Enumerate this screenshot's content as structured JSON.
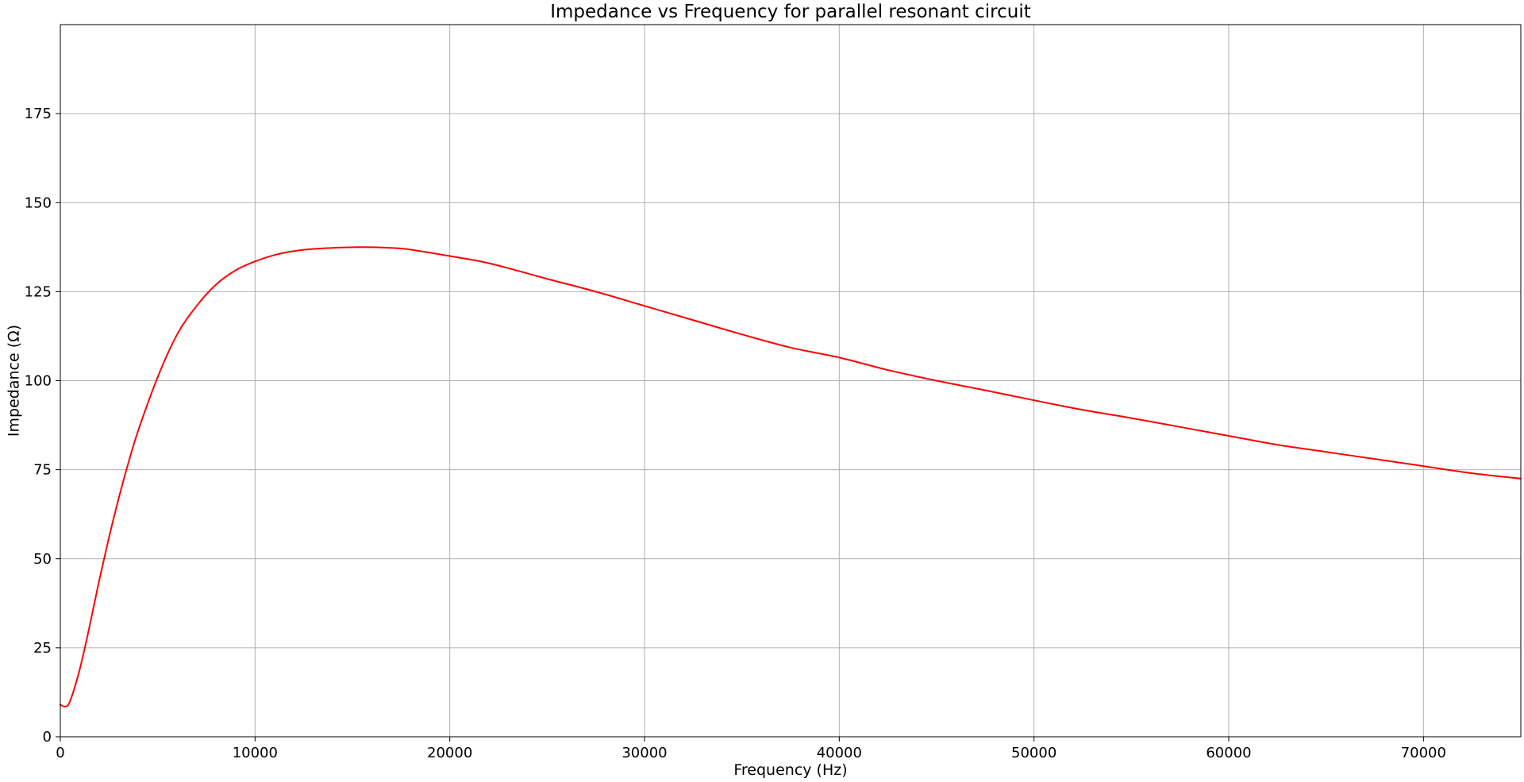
{
  "chart_data": {
    "type": "line",
    "title": "Impedance vs Frequency for parallel resonant circuit",
    "xlabel": "Frequency (Hz)",
    "ylabel": "Impedance (Ω)",
    "xlim": [
      0,
      75000
    ],
    "ylim": [
      0,
      200
    ],
    "xticks": [
      0,
      10000,
      20000,
      30000,
      40000,
      50000,
      60000,
      70000
    ],
    "xtick_labels": [
      "0",
      "10000",
      "20000",
      "30000",
      "40000",
      "50000",
      "60000",
      "70000"
    ],
    "yticks": [
      0,
      25,
      50,
      75,
      100,
      125,
      150,
      175
    ],
    "ytick_labels": [
      "0",
      "25",
      "50",
      "75",
      "100",
      "125",
      "150",
      "175"
    ],
    "grid": true,
    "series": [
      {
        "color": "#ff0000",
        "x": [
          0,
          250,
          500,
          1000,
          1500,
          2000,
          2500,
          3000,
          3500,
          4000,
          5000,
          6000,
          7000,
          8000,
          9000,
          10000,
          11000,
          12000,
          13000,
          14000,
          15500,
          17000,
          18000,
          20000,
          22000,
          25000,
          27500,
          30000,
          32500,
          35000,
          37500,
          40000,
          42500,
          45000,
          47500,
          50000,
          52500,
          55000,
          57500,
          60000,
          62500,
          65000,
          67500,
          70000,
          72500,
          75000
        ],
        "y": [
          9,
          8.5,
          10,
          19,
          31,
          44,
          56,
          67,
          77,
          86,
          101,
          113,
          121,
          127,
          131,
          133.5,
          135.3,
          136.4,
          137.0,
          137.3,
          137.5,
          137.3,
          136.8,
          135,
          133,
          128.6,
          125,
          121,
          117,
          113,
          109.3,
          106.5,
          103,
          100,
          97.3,
          94.5,
          91.8,
          89.5,
          87,
          84.5,
          82,
          80,
          78,
          76,
          74,
          72.5
        ]
      }
    ]
  }
}
